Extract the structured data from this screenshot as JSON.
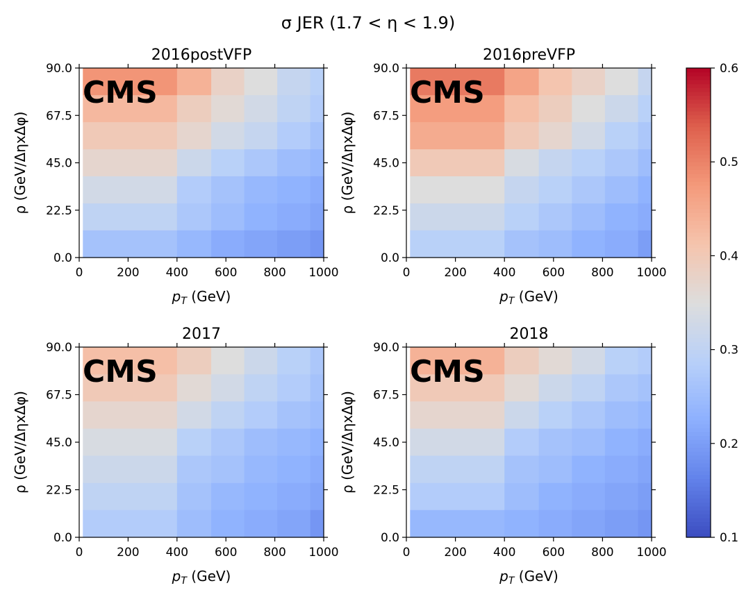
{
  "figure": {
    "title": "σ JER (1.7 < η < 1.9)"
  },
  "colorbar": {
    "min": 0.1,
    "max": 0.6,
    "ticks": [
      "0.1",
      "0.2",
      "0.3",
      "0.4",
      "0.5",
      "0.6"
    ],
    "colormap": "coolwarm"
  },
  "chart_data": [
    {
      "type": "heatmap",
      "title": "2016postVFP",
      "xlabel": "p_T (GeV)",
      "ylabel": "ρ (GeV/ΔηxΔφ)",
      "xlim": [
        0,
        1000
      ],
      "ylim": [
        0,
        90
      ],
      "x_edges": [
        15,
        400,
        540,
        675,
        810,
        945,
        1000
      ],
      "y_edges": [
        0,
        12.9,
        25.7,
        38.6,
        51.4,
        64.3,
        77.1,
        90
      ],
      "xticks": [
        "0",
        "200",
        "400",
        "600",
        "800",
        "1000"
      ],
      "yticks": [
        "0.0",
        "22.5",
        "45.0",
        "67.5",
        "90.0"
      ],
      "annotation": "CMS",
      "values": [
        [
          0.48,
          0.44,
          0.38,
          0.35,
          0.31,
          0.29
        ],
        [
          0.43,
          0.39,
          0.36,
          0.33,
          0.3,
          0.28
        ],
        [
          0.4,
          0.37,
          0.33,
          0.31,
          0.28,
          0.26
        ],
        [
          0.37,
          0.32,
          0.29,
          0.27,
          0.25,
          0.24
        ],
        [
          0.33,
          0.28,
          0.26,
          0.24,
          0.23,
          0.22
        ],
        [
          0.3,
          0.27,
          0.25,
          0.23,
          0.22,
          0.21
        ],
        [
          0.26,
          0.24,
          0.22,
          0.21,
          0.2,
          0.19
        ]
      ]
    },
    {
      "type": "heatmap",
      "title": "2016preVFP",
      "xlabel": "p_T (GeV)",
      "ylabel": "ρ (GeV/ΔηxΔφ)",
      "xlim": [
        0,
        1000
      ],
      "ylim": [
        0,
        90
      ],
      "x_edges": [
        15,
        400,
        540,
        675,
        810,
        945,
        1000
      ],
      "y_edges": [
        0,
        12.9,
        25.7,
        38.6,
        51.4,
        64.3,
        77.1,
        90
      ],
      "xticks": [
        "0",
        "200",
        "400",
        "600",
        "800",
        "1000"
      ],
      "yticks": [
        "0.0",
        "22.5",
        "45.0",
        "67.5",
        "90.0"
      ],
      "annotation": "CMS",
      "values": [
        [
          0.51,
          0.46,
          0.41,
          0.38,
          0.35,
          0.31
        ],
        [
          0.47,
          0.42,
          0.39,
          0.35,
          0.32,
          0.29
        ],
        [
          0.45,
          0.4,
          0.37,
          0.33,
          0.29,
          0.27
        ],
        [
          0.4,
          0.34,
          0.31,
          0.29,
          0.27,
          0.25
        ],
        [
          0.35,
          0.31,
          0.29,
          0.27,
          0.25,
          0.23
        ],
        [
          0.32,
          0.29,
          0.27,
          0.25,
          0.23,
          0.22
        ],
        [
          0.29,
          0.26,
          0.25,
          0.23,
          0.22,
          0.2
        ]
      ]
    },
    {
      "type": "heatmap",
      "title": "2017",
      "xlabel": "p_T (GeV)",
      "ylabel": "ρ (GeV/ΔηxΔφ)",
      "xlim": [
        0,
        1000
      ],
      "ylim": [
        0,
        90
      ],
      "x_edges": [
        15,
        400,
        540,
        675,
        810,
        945,
        1000
      ],
      "y_edges": [
        0,
        12.9,
        25.7,
        38.6,
        51.4,
        64.3,
        77.1,
        90
      ],
      "xticks": [
        "0",
        "200",
        "400",
        "600",
        "800",
        "1000"
      ],
      "yticks": [
        "0.0",
        "22.5",
        "45.0",
        "67.5",
        "90.0"
      ],
      "annotation": "CMS",
      "values": [
        [
          0.42,
          0.39,
          0.35,
          0.32,
          0.29,
          0.27
        ],
        [
          0.4,
          0.36,
          0.33,
          0.3,
          0.28,
          0.26
        ],
        [
          0.37,
          0.33,
          0.3,
          0.28,
          0.26,
          0.25
        ],
        [
          0.34,
          0.29,
          0.27,
          0.25,
          0.24,
          0.23
        ],
        [
          0.32,
          0.27,
          0.26,
          0.24,
          0.23,
          0.22
        ],
        [
          0.3,
          0.26,
          0.24,
          0.23,
          0.22,
          0.21
        ],
        [
          0.28,
          0.25,
          0.23,
          0.22,
          0.21,
          0.19
        ]
      ]
    },
    {
      "type": "heatmap",
      "title": "2018",
      "xlabel": "p_T (GeV)",
      "ylabel": "ρ (GeV/ΔηxΔφ)",
      "xlim": [
        0,
        1000
      ],
      "ylim": [
        0,
        90
      ],
      "x_edges": [
        15,
        400,
        540,
        675,
        810,
        945,
        1000
      ],
      "y_edges": [
        0,
        12.9,
        25.7,
        38.6,
        51.4,
        64.3,
        77.1,
        90
      ],
      "xticks": [
        "0",
        "200",
        "400",
        "600",
        "800",
        "1000"
      ],
      "yticks": [
        "0.0",
        "22.5",
        "45.0",
        "67.5",
        "90.0"
      ],
      "annotation": "CMS",
      "values": [
        [
          0.44,
          0.39,
          0.36,
          0.33,
          0.29,
          0.28
        ],
        [
          0.4,
          0.36,
          0.32,
          0.3,
          0.27,
          0.26
        ],
        [
          0.37,
          0.32,
          0.29,
          0.27,
          0.25,
          0.24
        ],
        [
          0.33,
          0.28,
          0.26,
          0.25,
          0.23,
          0.22
        ],
        [
          0.3,
          0.26,
          0.25,
          0.23,
          0.22,
          0.21
        ],
        [
          0.28,
          0.25,
          0.23,
          0.22,
          0.21,
          0.2
        ],
        [
          0.24,
          0.23,
          0.22,
          0.21,
          0.2,
          0.19
        ]
      ]
    }
  ]
}
